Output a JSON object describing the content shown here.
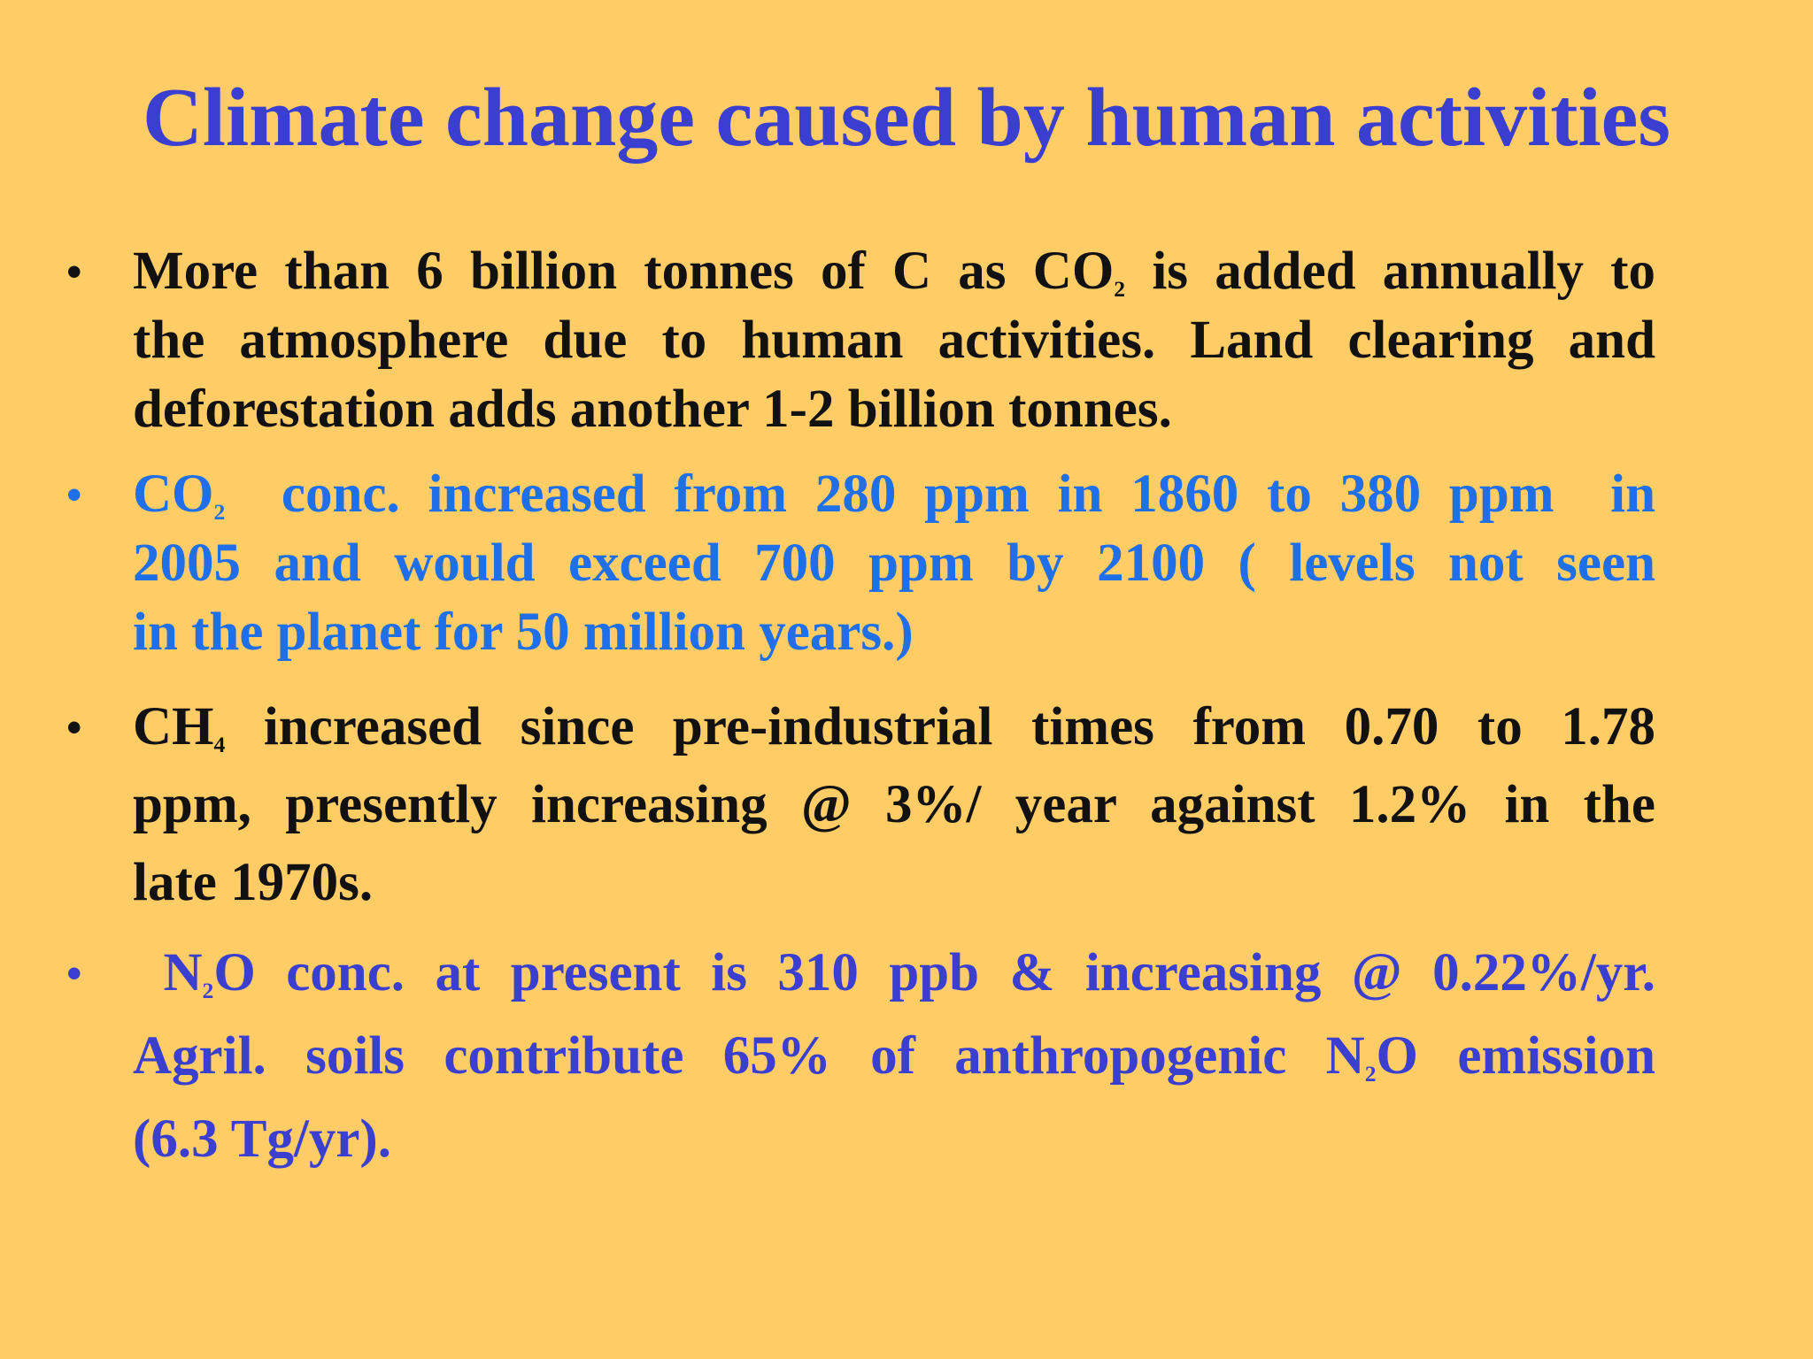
{
  "colors": {
    "background": "#FFCC66",
    "title": "#3B3FD0",
    "black": "#111111",
    "bright_blue": "#1E6FE8",
    "indigo": "#3B3FD0"
  },
  "slide": {
    "title": "Climate change caused by human activities",
    "bullet_glyph": "•",
    "bullets": [
      {
        "color": "#111111",
        "l1a": "More than 6 billion tonnes of C as CO",
        "l1sub": "2",
        "l1b": " is added annually to",
        "l2": "the atmosphere due to human activities. Land clearing and",
        "l3": "deforestation adds another 1-2 billion tonnes."
      },
      {
        "color": "#1E6FE8",
        "l1a": "CO",
        "l1sub": "2",
        "l1b": "  conc. increased from 280 ppm in 1860 to 380 ppm  in",
        "l2": "2005 and would exceed 700 ppm by 2100 ( levels not seen",
        "l3": "in the planet for 50 million years.)"
      },
      {
        "color": "#111111",
        "l1a": "CH",
        "l1sub": "4",
        "l1b": " increased since pre-industrial times from 0.70 to 1.78",
        "l2": "ppm, presently increasing @ 3%/ year against 1.2% in the",
        "l3": "late 1970s."
      },
      {
        "color": "#3B3FD0",
        "l1a": " N",
        "l1sub": "2",
        "l1b": "O conc. at present is 310 ppb & increasing @ 0.22%/yr.",
        "l2a": "Agril. soils contribute 65% of anthropogenic N",
        "l2sub": "2",
        "l2b": "O emission",
        "l3": "(6.3 Tg/yr)."
      }
    ]
  }
}
